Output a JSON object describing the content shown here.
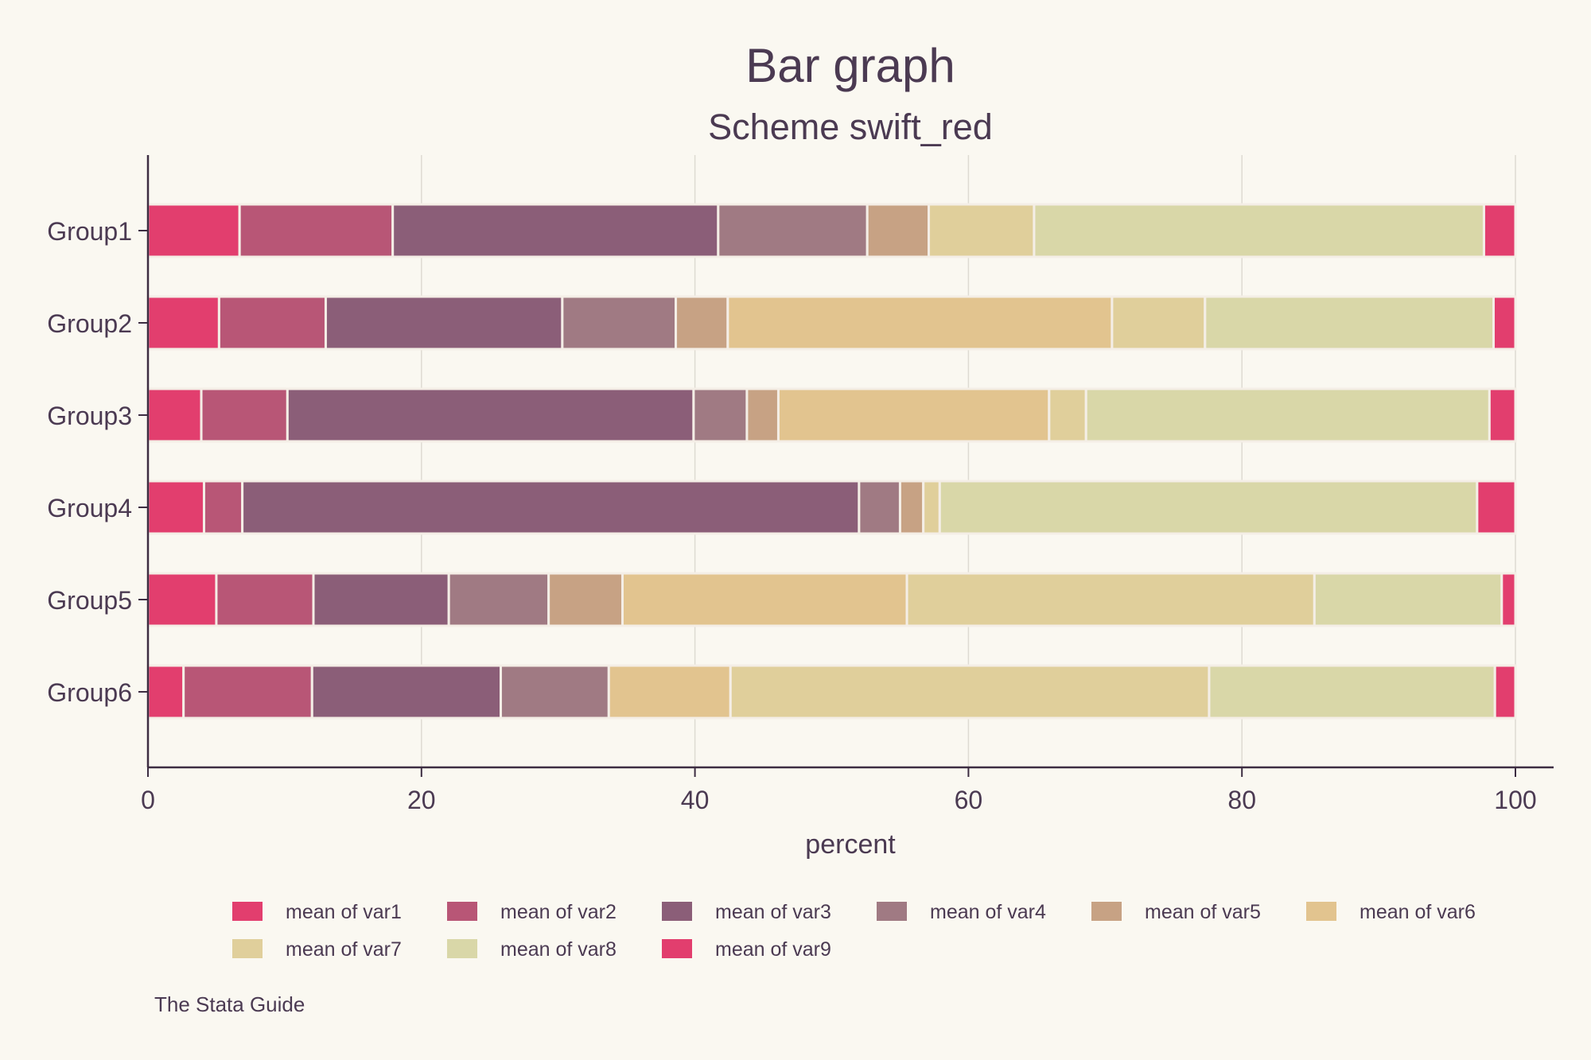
{
  "chart_data": {
    "type": "bar",
    "orientation": "horizontal",
    "stacked": true,
    "title": "Bar graph",
    "subtitle": "Scheme swift_red",
    "xlabel": "percent",
    "ylabel": "",
    "xlim": [
      0,
      100
    ],
    "xticks": [
      0,
      20,
      40,
      60,
      80,
      100
    ],
    "grid": true,
    "legend_position": "bottom",
    "note": "The Stata Guide",
    "categories": [
      "Group1",
      "Group2",
      "Group3",
      "Group4",
      "Group5",
      "Group6"
    ],
    "series": [
      {
        "name": "mean of var1",
        "color": "#e23e6e",
        "values": [
          6.7,
          5.2,
          3.9,
          4.1,
          5.0,
          2.6
        ]
      },
      {
        "name": "mean of var2",
        "color": "#b85676",
        "values": [
          11.2,
          7.8,
          6.3,
          2.8,
          7.1,
          9.4
        ]
      },
      {
        "name": "mean of var3",
        "color": "#8b5e78",
        "values": [
          23.8,
          17.3,
          29.7,
          45.1,
          9.9,
          13.8
        ]
      },
      {
        "name": "mean of var4",
        "color": "#a07a83",
        "values": [
          10.9,
          8.3,
          3.9,
          3.0,
          7.3,
          7.9
        ]
      },
      {
        "name": "mean of var5",
        "color": "#c7a284",
        "values": [
          4.5,
          3.8,
          2.3,
          1.7,
          5.4,
          0
        ]
      },
      {
        "name": "mean of var6",
        "color": "#e2c48f",
        "values": [
          0,
          28.1,
          19.8,
          0,
          20.8,
          8.9
        ]
      },
      {
        "name": "mean of var7",
        "color": "#e0cf9b",
        "values": [
          7.7,
          6.8,
          2.7,
          1.2,
          29.8,
          35.0
        ]
      },
      {
        "name": "mean of var8",
        "color": "#d9d7a8",
        "values": [
          32.9,
          21.1,
          29.5,
          39.3,
          13.7,
          20.9
        ]
      },
      {
        "name": "mean of var9",
        "color": "#e23e6e",
        "values": [
          2.3,
          1.6,
          1.9,
          2.8,
          1.0,
          1.5
        ]
      }
    ],
    "colors": {
      "background": "#faf8f1",
      "text": "#4b3a52",
      "grid": "#dedbd2",
      "axis": "#3d2d42",
      "bar_edge": "#f4eee6"
    }
  }
}
